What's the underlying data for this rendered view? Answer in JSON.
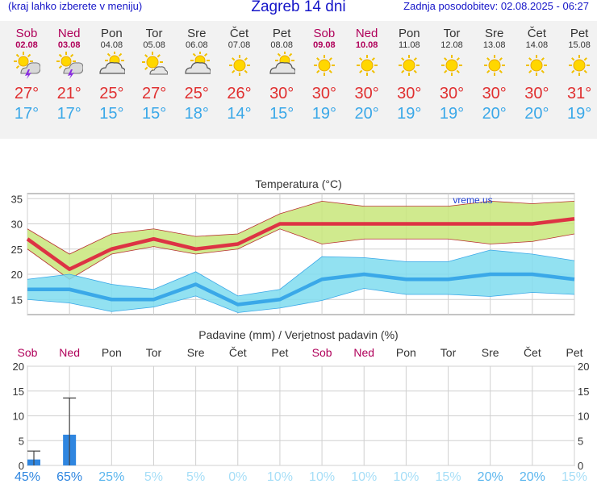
{
  "header": {
    "menu_hint": "(kraj lahko izberete v meniju)",
    "title": "Zagreb 14 dni",
    "updated": "Zadnja posodobitev: 02.08.2025 - 06:27"
  },
  "colors": {
    "max": "#dd3344",
    "min": "#3aa8e8",
    "max_band": "#c8e67a",
    "min_band": "#7fdcef",
    "weekend": "#b0005a",
    "bar": "#2f86e0"
  },
  "days": [
    {
      "name": "Sob",
      "date": "02.08",
      "weekend": true,
      "icon": "thunder-sun-icon",
      "max": "27°",
      "min": "17°"
    },
    {
      "name": "Ned",
      "date": "03.08",
      "weekend": true,
      "icon": "thunder-sun-icon",
      "max": "21°",
      "min": "17°"
    },
    {
      "name": "Pon",
      "date": "04.08",
      "weekend": false,
      "icon": "partly-cloudy-icon",
      "max": "25°",
      "min": "15°"
    },
    {
      "name": "Tor",
      "date": "05.08",
      "weekend": false,
      "icon": "sun-cloud-small-icon",
      "max": "27°",
      "min": "15°"
    },
    {
      "name": "Sre",
      "date": "06.08",
      "weekend": false,
      "icon": "partly-cloudy-icon",
      "max": "25°",
      "min": "18°"
    },
    {
      "name": "Čet",
      "date": "07.08",
      "weekend": false,
      "icon": "sun-icon",
      "max": "26°",
      "min": "14°"
    },
    {
      "name": "Pet",
      "date": "08.08",
      "weekend": false,
      "icon": "partly-cloudy-icon",
      "max": "30°",
      "min": "15°"
    },
    {
      "name": "Sob",
      "date": "09.08",
      "weekend": true,
      "icon": "sun-icon",
      "max": "30°",
      "min": "19°"
    },
    {
      "name": "Ned",
      "date": "10.08",
      "weekend": true,
      "icon": "sun-icon",
      "max": "30°",
      "min": "20°"
    },
    {
      "name": "Pon",
      "date": "11.08",
      "weekend": false,
      "icon": "sun-icon",
      "max": "30°",
      "min": "19°"
    },
    {
      "name": "Tor",
      "date": "12.08",
      "weekend": false,
      "icon": "sun-icon",
      "max": "30°",
      "min": "19°"
    },
    {
      "name": "Sre",
      "date": "13.08",
      "weekend": false,
      "icon": "sun-icon",
      "max": "30°",
      "min": "20°"
    },
    {
      "name": "Čet",
      "date": "14.08",
      "weekend": false,
      "icon": "sun-icon",
      "max": "30°",
      "min": "20°"
    },
    {
      "name": "Pet",
      "date": "15.08",
      "weekend": false,
      "icon": "sun-icon",
      "max": "31°",
      "min": "19°"
    }
  ],
  "chart_data": [
    {
      "type": "line",
      "title": "Temperatura (°C)",
      "watermark": "vreme.us",
      "categories": [
        "Sob",
        "Ned",
        "Pon",
        "Tor",
        "Sre",
        "Čet",
        "Pet",
        "Sob",
        "Ned",
        "Pon",
        "Tor",
        "Sre",
        "Čet",
        "Pet"
      ],
      "ylim": [
        12,
        36
      ],
      "yticks": [
        15,
        20,
        25,
        30,
        35
      ],
      "grid": true,
      "series": [
        {
          "values": [
            27,
            21,
            25,
            27,
            25,
            26,
            30,
            30,
            30,
            30,
            30,
            30,
            30,
            31
          ]
        },
        {
          "values": [
            17,
            17,
            15,
            15,
            18,
            14,
            15,
            19,
            20,
            19,
            19,
            20,
            20,
            19
          ]
        }
      ],
      "bands": [
        {
          "upper": [
            29,
            24,
            28,
            29,
            27.5,
            28,
            32,
            34.5,
            33.5,
            33.5,
            33.5,
            34.5,
            34,
            34.5
          ],
          "lower": [
            25,
            19,
            24,
            25.5,
            24,
            25,
            29,
            26,
            27,
            27,
            27,
            26,
            26.5,
            28
          ]
        },
        {
          "upper": [
            19,
            20,
            18,
            17,
            20.5,
            15.7,
            17,
            23.5,
            23.3,
            22.5,
            22.5,
            24.8,
            24,
            22.7
          ],
          "lower": [
            15,
            14.3,
            12.6,
            13.5,
            15.7,
            12.4,
            13.3,
            14.8,
            17.2,
            16,
            16,
            15.6,
            16.4,
            16
          ]
        }
      ]
    },
    {
      "type": "bar",
      "title": "Padavine (mm) / Verjetnost padavin (%)",
      "categories": [
        "Sob",
        "Ned",
        "Pon",
        "Tor",
        "Sre",
        "Čet",
        "Pet",
        "Sob",
        "Ned",
        "Pon",
        "Tor",
        "Sre",
        "Čet",
        "Pet"
      ],
      "ylim": [
        0,
        20
      ],
      "yticks": [
        0,
        5,
        10,
        15,
        20
      ],
      "grid": true,
      "values": [
        1.2,
        6.2,
        0,
        0,
        0,
        0,
        0,
        0,
        0,
        0,
        0,
        0,
        0,
        0
      ],
      "error_high": [
        2.9,
        13.6,
        0,
        0,
        0,
        0,
        0,
        0,
        0,
        0,
        0,
        0,
        0,
        0
      ],
      "probability": [
        "45%",
        "65%",
        "25%",
        "5%",
        "5%",
        "0%",
        "10%",
        "10%",
        "10%",
        "10%",
        "15%",
        "20%",
        "20%",
        "15%"
      ],
      "probability_values": [
        45,
        65,
        25,
        5,
        5,
        0,
        10,
        10,
        10,
        10,
        15,
        20,
        20,
        15
      ]
    }
  ]
}
